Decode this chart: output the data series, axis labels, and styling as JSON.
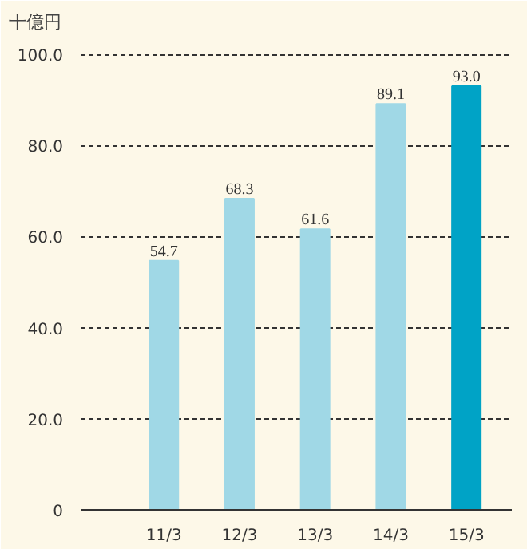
{
  "chart_data": {
    "type": "bar",
    "ylabel": "十億円",
    "categories": [
      "11/3",
      "12/3",
      "13/3",
      "14/3",
      "15/3"
    ],
    "values": [
      54.7,
      68.3,
      61.6,
      89.1,
      93.0
    ],
    "colors": [
      "#a0d8e6",
      "#a0d8e6",
      "#a0d8e6",
      "#a0d8e6",
      "#00a3c6"
    ],
    "value_labels": [
      "54.7",
      "68.3",
      "61.6",
      "89.1",
      "93.0"
    ],
    "ylim": [
      0,
      103
    ],
    "yticks": [
      {
        "value": 0,
        "label": "0"
      },
      {
        "value": 20,
        "label": "20.0"
      },
      {
        "value": 40,
        "label": "40.0"
      },
      {
        "value": 60,
        "label": "60.0"
      },
      {
        "value": 80,
        "label": "80.0"
      },
      {
        "value": 100,
        "label": "100.0"
      }
    ],
    "grid": "y"
  }
}
